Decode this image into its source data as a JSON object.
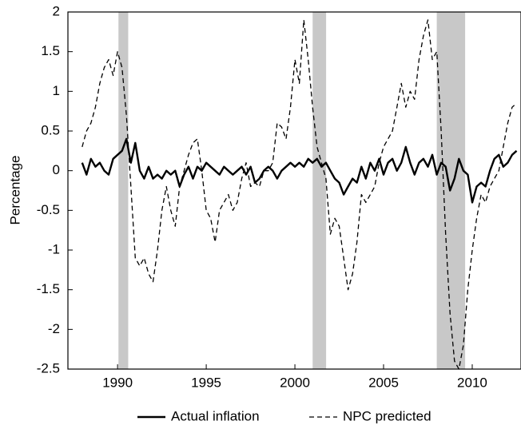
{
  "chart_data": {
    "type": "line",
    "ylabel": "Percentage",
    "x": [
      1988,
      1988.25,
      1988.5,
      1988.75,
      1989,
      1989.25,
      1989.5,
      1989.75,
      1990,
      1990.25,
      1990.5,
      1990.75,
      1991,
      1991.25,
      1991.5,
      1991.75,
      1992,
      1992.25,
      1992.5,
      1992.75,
      1993,
      1993.25,
      1993.5,
      1993.75,
      1994,
      1994.25,
      1994.5,
      1994.75,
      1995,
      1995.25,
      1995.5,
      1995.75,
      1996,
      1996.25,
      1996.5,
      1996.75,
      1997,
      1997.25,
      1997.5,
      1997.75,
      1998,
      1998.25,
      1998.5,
      1998.75,
      1999,
      1999.25,
      1999.5,
      1999.75,
      2000,
      2000.25,
      2000.5,
      2000.75,
      2001,
      2001.25,
      2001.5,
      2001.75,
      2002,
      2002.25,
      2002.5,
      2002.75,
      2003,
      2003.25,
      2003.5,
      2003.75,
      2004,
      2004.25,
      2004.5,
      2004.75,
      2005,
      2005.25,
      2005.5,
      2005.75,
      2006,
      2006.25,
      2006.5,
      2006.75,
      2007,
      2007.25,
      2007.5,
      2007.75,
      2008,
      2008.25,
      2008.5,
      2008.75,
      2009,
      2009.25,
      2009.5,
      2009.75,
      2010,
      2010.25,
      2010.5,
      2010.75,
      2011,
      2011.25,
      2011.5,
      2011.75,
      2012,
      2012.25,
      2012.5
    ],
    "series": [
      {
        "name": "Actual inflation",
        "color": "#000000",
        "dash": "none",
        "width": 2.4,
        "values": [
          0.1,
          -0.05,
          0.15,
          0.05,
          0.1,
          0.0,
          -0.05,
          0.15,
          0.2,
          0.25,
          0.4,
          0.1,
          0.35,
          0.0,
          -0.1,
          0.05,
          -0.1,
          -0.05,
          -0.1,
          0.0,
          -0.05,
          0.0,
          -0.2,
          -0.05,
          0.05,
          -0.1,
          0.05,
          0.0,
          0.1,
          0.05,
          0.0,
          -0.05,
          0.05,
          0.0,
          -0.05,
          0.0,
          0.05,
          -0.05,
          0.05,
          -0.15,
          -0.1,
          0.0,
          0.05,
          0.0,
          -0.1,
          0.0,
          0.05,
          0.1,
          0.05,
          0.1,
          0.05,
          0.15,
          0.1,
          0.15,
          0.05,
          0.1,
          0.0,
          -0.1,
          -0.15,
          -0.3,
          -0.2,
          -0.1,
          -0.15,
          0.05,
          -0.1,
          0.1,
          0.0,
          0.15,
          -0.05,
          0.1,
          0.15,
          0.0,
          0.1,
          0.3,
          0.1,
          -0.05,
          0.1,
          0.15,
          0.05,
          0.2,
          -0.05,
          0.1,
          0.05,
          -0.25,
          -0.1,
          0.15,
          0.0,
          -0.05,
          -0.4,
          -0.2,
          -0.15,
          -0.2,
          0.0,
          0.15,
          0.2,
          0.05,
          0.1,
          0.2,
          0.25
        ]
      },
      {
        "name": "NPC predicted",
        "color": "#000000",
        "dash": "6 4",
        "width": 1.3,
        "values": [
          0.3,
          0.5,
          0.6,
          0.8,
          1.1,
          1.3,
          1.4,
          1.2,
          1.5,
          1.3,
          0.7,
          -0.2,
          -1.1,
          -1.2,
          -1.1,
          -1.3,
          -1.4,
          -1.0,
          -0.5,
          -0.2,
          -0.5,
          -0.7,
          -0.2,
          0.0,
          0.2,
          0.35,
          0.4,
          0.0,
          -0.5,
          -0.6,
          -0.9,
          -0.5,
          -0.4,
          -0.3,
          -0.5,
          -0.4,
          -0.1,
          0.1,
          -0.2,
          -0.15,
          -0.2,
          0.0,
          0.0,
          0.1,
          0.6,
          0.55,
          0.4,
          0.8,
          1.4,
          1.1,
          1.9,
          1.4,
          0.8,
          0.3,
          0.1,
          -0.1,
          -0.8,
          -0.6,
          -0.7,
          -1.1,
          -1.5,
          -1.3,
          -0.9,
          -0.3,
          -0.4,
          -0.3,
          -0.2,
          0.1,
          0.3,
          0.4,
          0.5,
          0.8,
          1.1,
          0.8,
          1.0,
          0.9,
          1.4,
          1.7,
          1.9,
          1.4,
          1.5,
          0.5,
          -0.8,
          -1.8,
          -2.4,
          -2.5,
          -2.2,
          -1.5,
          -1.0,
          -0.6,
          -0.3,
          -0.4,
          -0.2,
          -0.1,
          0.0,
          0.3,
          0.6,
          0.8,
          0.85
        ]
      }
    ],
    "shaded_regions": [
      [
        1990.05,
        1990.6
      ],
      [
        2001.0,
        2001.76
      ],
      [
        2008.0,
        2009.6
      ]
    ],
    "shade_color": "#c8c8c8",
    "xlim": [
      1987.2,
      2012.75
    ],
    "xticks": [
      1990,
      1995,
      2000,
      2005,
      2010
    ],
    "ylim": [
      -2.5,
      2
    ],
    "yticks": [
      -2.5,
      -2,
      -1.5,
      -1,
      -0.5,
      0,
      0.5,
      1,
      1.5,
      2
    ],
    "legend": "bottom"
  }
}
